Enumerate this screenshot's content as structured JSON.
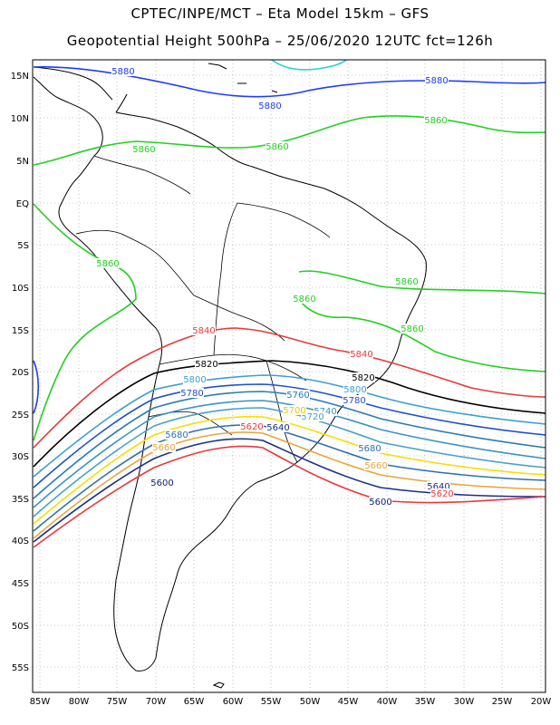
{
  "header": {
    "line1": "CPTEC/INPE/MCT –  Eta Model 15km – GFS",
    "line2": "Geopotential Height 500hPa – 25/06/2020 12UTC fct=126h"
  },
  "axes": {
    "lat_labels": [
      "15N",
      "10N",
      "5N",
      "EQ",
      "5S",
      "10S",
      "15S",
      "20S",
      "25S",
      "30S",
      "35S",
      "40S",
      "45S",
      "50S",
      "55S"
    ],
    "lon_labels": [
      "85W",
      "80W",
      "75W",
      "70W",
      "65W",
      "60W",
      "55W",
      "50W",
      "45W",
      "40W",
      "35W",
      "30W",
      "25W",
      "20W"
    ]
  },
  "contours": [
    {
      "value": "5880",
      "color": "#1e3cff"
    },
    {
      "value": "5860",
      "color": "#22d022"
    },
    {
      "value": "5840",
      "color": "#e83a3a"
    },
    {
      "value": "5820",
      "color": "#000000"
    },
    {
      "value": "5800",
      "color": "#3c9fd0"
    },
    {
      "value": "5780",
      "color": "#1f4fcf"
    },
    {
      "value": "5760",
      "color": "#2a7ab4"
    },
    {
      "value": "5740",
      "color": "#3a93c2"
    },
    {
      "value": "5720",
      "color": "#4aa0c8"
    },
    {
      "value": "5700",
      "color": "#f5e000"
    },
    {
      "value": "5680",
      "color": "#2f6fb0"
    },
    {
      "value": "5660",
      "color": "#e8a63a"
    },
    {
      "value": "5640",
      "color": "#1a2f8a"
    },
    {
      "value": "5620",
      "color": "#e83a3a"
    },
    {
      "value": "5600",
      "color": "#0d1f6e"
    }
  ],
  "contour_labels": [
    {
      "text": "5880",
      "color": "#1e3cff"
    },
    {
      "text": "5880",
      "color": "#1e3cff"
    },
    {
      "text": "5880",
      "color": "#1e3cff"
    },
    {
      "text": "5860",
      "color": "#22d022"
    },
    {
      "text": "5860",
      "color": "#22d022"
    },
    {
      "text": "5860",
      "color": "#22d022"
    },
    {
      "text": "5860",
      "color": "#22d022"
    },
    {
      "text": "5860",
      "color": "#22d022"
    },
    {
      "text": "5860",
      "color": "#22d022"
    },
    {
      "text": "5860",
      "color": "#22d022"
    },
    {
      "text": "5840",
      "color": "#e83a3a"
    },
    {
      "text": "5840",
      "color": "#e83a3a"
    },
    {
      "text": "5820",
      "color": "#000000"
    },
    {
      "text": "5820",
      "color": "#000000"
    },
    {
      "text": "5800",
      "color": "#3c9fd0"
    },
    {
      "text": "5800",
      "color": "#3c9fd0"
    },
    {
      "text": "5780",
      "color": "#1f4fcf"
    },
    {
      "text": "5780",
      "color": "#1f4fcf"
    },
    {
      "text": "5760",
      "color": "#2a7ab4"
    },
    {
      "text": "5740",
      "color": "#3a93c2"
    },
    {
      "text": "5720",
      "color": "#4aa0c8"
    },
    {
      "text": "5700",
      "color": "#e8c800"
    },
    {
      "text": "5680",
      "color": "#2f6fb0"
    },
    {
      "text": "5680",
      "color": "#2f6fb0"
    },
    {
      "text": "5660",
      "color": "#e8a63a"
    },
    {
      "text": "5660",
      "color": "#e8a63a"
    },
    {
      "text": "5640",
      "color": "#1a2f8a"
    },
    {
      "text": "5640",
      "color": "#1a2f8a"
    },
    {
      "text": "5620",
      "color": "#e83a3a"
    },
    {
      "text": "5620",
      "color": "#e83a3a"
    },
    {
      "text": "5600",
      "color": "#0d1f6e"
    },
    {
      "text": "5600",
      "color": "#0d1f6e"
    }
  ],
  "style": {
    "background": "#ffffff",
    "grid_color": "#9a9a9a"
  }
}
